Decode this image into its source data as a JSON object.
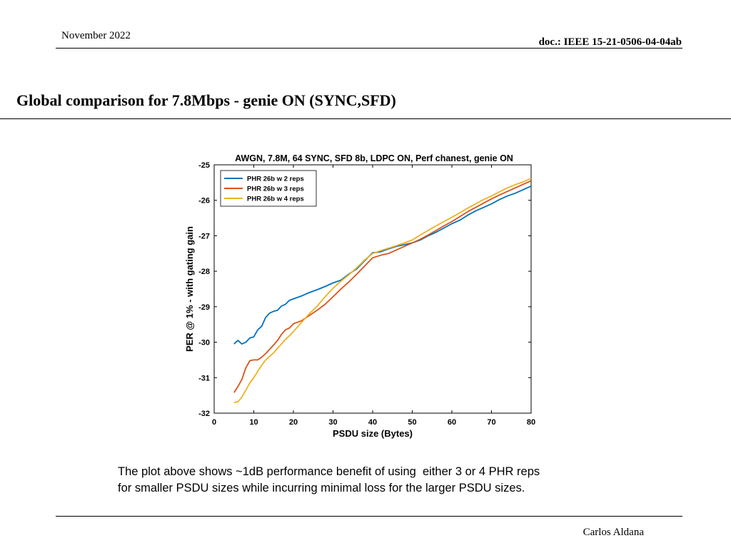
{
  "header": {
    "date": "November 2022",
    "doc_id": "doc.: IEEE 15-21-0506-04-04ab"
  },
  "slide": {
    "title": "Global comparison for 7.8Mbps - genie ON (SYNC,SFD)",
    "caption_line1": "The plot above shows ~1dB performance benefit of using  either 3 or 4 PHR reps",
    "caption_line2": "for smaller PSDU sizes while incurring minimal loss for the larger PSDU sizes."
  },
  "footer": {
    "author": "Carlos Aldana"
  },
  "chart_data": {
    "type": "line",
    "title": "AWGN, 7.8M, 64 SYNC, SFD 8b, LDPC ON, Perf chanest, genie ON",
    "xlabel": "PSDU size (Bytes)",
    "ylabel": "PER @ 1% - with gating gain",
    "xlim": [
      0,
      80
    ],
    "ylim": [
      -32,
      -25
    ],
    "xticks": [
      0,
      10,
      20,
      30,
      40,
      50,
      60,
      70,
      80
    ],
    "yticks": [
      -25,
      -26,
      -27,
      -28,
      -29,
      -30,
      -31,
      -32
    ],
    "grid": false,
    "legend_position": "top-left",
    "x": [
      5,
      6,
      7,
      8,
      9,
      10,
      11,
      12,
      13,
      14,
      15,
      16,
      17,
      18,
      19,
      20,
      22,
      24,
      26,
      28,
      30,
      32,
      34,
      36,
      38,
      40,
      42,
      44,
      46,
      48,
      50,
      52,
      54,
      56,
      58,
      60,
      62,
      64,
      66,
      68,
      70,
      72,
      74,
      76,
      78,
      80
    ],
    "series": [
      {
        "name": "PHR 26b w 2 reps",
        "color": "#0072BD",
        "values": [
          -30.05,
          -29.95,
          -30.05,
          -30.0,
          -29.88,
          -29.85,
          -29.65,
          -29.55,
          -29.3,
          -29.18,
          -29.13,
          -29.1,
          -28.98,
          -28.93,
          -28.82,
          -28.78,
          -28.7,
          -28.6,
          -28.52,
          -28.43,
          -28.33,
          -28.25,
          -28.08,
          -27.93,
          -27.7,
          -27.48,
          -27.45,
          -27.37,
          -27.3,
          -27.25,
          -27.2,
          -27.12,
          -27.0,
          -26.9,
          -26.78,
          -26.66,
          -26.56,
          -26.42,
          -26.3,
          -26.2,
          -26.1,
          -25.98,
          -25.88,
          -25.8,
          -25.7,
          -25.6
        ]
      },
      {
        "name": "PHR 26b w 3 reps",
        "color": "#D95319",
        "values": [
          -31.42,
          -31.25,
          -31.05,
          -30.72,
          -30.52,
          -30.5,
          -30.5,
          -30.42,
          -30.32,
          -30.2,
          -30.08,
          -29.95,
          -29.78,
          -29.65,
          -29.6,
          -29.48,
          -29.4,
          -29.25,
          -29.1,
          -28.93,
          -28.72,
          -28.5,
          -28.3,
          -28.08,
          -27.85,
          -27.62,
          -27.55,
          -27.5,
          -27.4,
          -27.3,
          -27.2,
          -27.1,
          -26.98,
          -26.85,
          -26.72,
          -26.6,
          -26.46,
          -26.32,
          -26.2,
          -26.08,
          -25.96,
          -25.85,
          -25.75,
          -25.65,
          -25.55,
          -25.45
        ]
      },
      {
        "name": "PHR 26b w 4 reps",
        "color": "#EDB120",
        "values": [
          -31.7,
          -31.68,
          -31.55,
          -31.35,
          -31.15,
          -31.0,
          -30.82,
          -30.65,
          -30.5,
          -30.4,
          -30.3,
          -30.17,
          -30.05,
          -29.92,
          -29.82,
          -29.7,
          -29.45,
          -29.2,
          -28.98,
          -28.72,
          -28.48,
          -28.28,
          -28.1,
          -27.9,
          -27.68,
          -27.5,
          -27.42,
          -27.35,
          -27.28,
          -27.2,
          -27.12,
          -26.98,
          -26.85,
          -26.72,
          -26.6,
          -26.48,
          -26.35,
          -26.22,
          -26.1,
          -25.98,
          -25.88,
          -25.76,
          -25.65,
          -25.56,
          -25.48,
          -25.38
        ]
      }
    ]
  }
}
